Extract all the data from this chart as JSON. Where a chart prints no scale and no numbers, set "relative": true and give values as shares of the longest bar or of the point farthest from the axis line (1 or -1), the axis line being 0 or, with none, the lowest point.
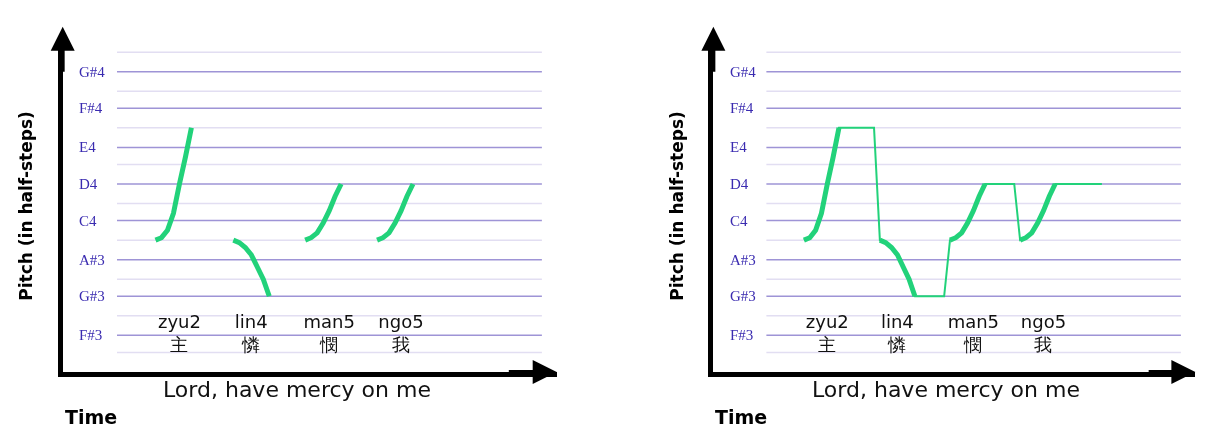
{
  "chart_data": [
    {
      "type": "line",
      "relative": true,
      "ylabel": "Pitch (in half-steps)",
      "xlabel": "Time",
      "annotations": [
        "Lord, have mercy on me"
      ],
      "marker": "none",
      "line_style": "solid",
      "categories": [
        null,
        null,
        null,
        null,
        null,
        null,
        null,
        null,
        null,
        null,
        null,
        null,
        null,
        null,
        null,
        null,
        null,
        null,
        null,
        "zyu2\n主",
        null,
        null,
        null,
        null,
        null,
        null,
        null,
        null,
        null,
        null,
        null,
        "lin4\n憐",
        null,
        null,
        null,
        null,
        null,
        null,
        null,
        null,
        null,
        null,
        null,
        null,
        "man5\n憫",
        null,
        null,
        null,
        null,
        null,
        null,
        null,
        null,
        null,
        null,
        null,
        "ngo5\n我",
        null,
        null,
        null,
        null,
        null,
        null,
        null,
        null,
        null,
        null,
        null,
        null,
        null,
        null,
        null,
        null,
        null,
        null,
        null,
        null,
        null,
        null,
        null,
        null,
        null
      ],
      "ref_lines": [
        {
          "axis": "y",
          "value": 1.31,
          "color": "#e2def2"
        },
        {
          "axis": "y",
          "value": 1.23,
          "label": "G#4",
          "color": "#9e94d6"
        },
        {
          "axis": "y",
          "value": 1.15,
          "color": "#e2def2"
        },
        {
          "axis": "y",
          "value": 1.08,
          "label": "F#4",
          "color": "#9e94d6"
        },
        {
          "axis": "y",
          "value": 1,
          "color": "#e2def2"
        },
        {
          "axis": "y",
          "value": 0.92,
          "label": "E4",
          "color": "#9e94d6"
        },
        {
          "axis": "y",
          "value": 0.85,
          "color": "#e2def2"
        },
        {
          "axis": "y",
          "value": 0.77,
          "label": "D4",
          "color": "#9e94d6"
        },
        {
          "axis": "y",
          "value": 0.69,
          "color": "#e2def2"
        },
        {
          "axis": "y",
          "value": 0.62,
          "label": "C4",
          "color": "#9e94d6"
        },
        {
          "axis": "y",
          "value": 0.54,
          "color": "#e2def2"
        },
        {
          "axis": "y",
          "value": 0.46,
          "label": "A#3",
          "color": "#9e94d6"
        },
        {
          "axis": "y",
          "value": 0.38,
          "color": "#e2def2"
        },
        {
          "axis": "y",
          "value": 0.31,
          "label": "G#3",
          "color": "#9e94d6"
        },
        {
          "axis": "y",
          "value": 0.23,
          "color": "#e2def2"
        },
        {
          "axis": "y",
          "value": 0.15,
          "label": "F#3",
          "color": "#9e94d6"
        },
        {
          "axis": "y",
          "value": 0.08,
          "color": "#e2def2"
        }
      ],
      "series": [
        {
          "color": "#22d27a",
          "values": [
            null,
            null,
            null,
            null,
            null,
            null,
            null,
            null,
            null,
            null,
            null,
            null,
            null,
            null,
            null,
            0.54,
            0.55,
            0.58,
            0.65,
            0.77,
            0.88,
            1,
            null,
            null,
            null,
            null,
            null,
            null,
            0.54,
            0.53,
            0.51,
            0.48,
            0.43,
            0.38,
            0.31,
            null,
            null,
            null,
            null,
            null,
            0.54,
            0.55,
            0.57,
            0.61,
            0.66,
            0.72,
            0.77,
            null,
            null,
            null,
            null,
            null,
            0.54,
            0.55,
            0.57,
            0.61,
            0.66,
            0.72,
            0.77,
            null,
            null,
            null,
            null,
            null,
            null,
            null,
            null,
            null,
            null,
            null,
            null,
            null,
            null,
            null,
            null,
            null,
            null,
            null,
            null,
            null,
            null,
            null
          ]
        }
      ]
    },
    {
      "type": "line",
      "relative": true,
      "ylabel": "Pitch (in half-steps)",
      "xlabel": "Time",
      "annotations": [
        "Lord, have mercy on me"
      ],
      "marker": "none",
      "line_style": "solid",
      "categories": [
        null,
        null,
        null,
        null,
        null,
        null,
        null,
        null,
        null,
        null,
        null,
        null,
        null,
        null,
        null,
        null,
        null,
        null,
        null,
        "zyu2\n主",
        null,
        null,
        null,
        null,
        null,
        null,
        null,
        null,
        null,
        null,
        null,
        "lin4\n憐",
        null,
        null,
        null,
        null,
        null,
        null,
        null,
        null,
        null,
        null,
        null,
        null,
        "man5\n憫",
        null,
        null,
        null,
        null,
        null,
        null,
        null,
        null,
        null,
        null,
        null,
        "ngo5\n我",
        null,
        null,
        null,
        null,
        null,
        null,
        null,
        null,
        null,
        null,
        null,
        null,
        null,
        null,
        null,
        null,
        null,
        null,
        null,
        null,
        null,
        null,
        null,
        null,
        null
      ],
      "ref_lines": [
        {
          "axis": "y",
          "value": 1.31,
          "color": "#e2def2"
        },
        {
          "axis": "y",
          "value": 1.23,
          "label": "G#4",
          "color": "#9e94d6"
        },
        {
          "axis": "y",
          "value": 1.15,
          "color": "#e2def2"
        },
        {
          "axis": "y",
          "value": 1.08,
          "label": "F#4",
          "color": "#9e94d6"
        },
        {
          "axis": "y",
          "value": 1,
          "color": "#e2def2"
        },
        {
          "axis": "y",
          "value": 0.92,
          "label": "E4",
          "color": "#9e94d6"
        },
        {
          "axis": "y",
          "value": 0.85,
          "color": "#e2def2"
        },
        {
          "axis": "y",
          "value": 0.77,
          "label": "D4",
          "color": "#9e94d6"
        },
        {
          "axis": "y",
          "value": 0.69,
          "color": "#e2def2"
        },
        {
          "axis": "y",
          "value": 0.62,
          "label": "C4",
          "color": "#9e94d6"
        },
        {
          "axis": "y",
          "value": 0.54,
          "color": "#e2def2"
        },
        {
          "axis": "y",
          "value": 0.46,
          "label": "A#3",
          "color": "#9e94d6"
        },
        {
          "axis": "y",
          "value": 0.38,
          "color": "#e2def2"
        },
        {
          "axis": "y",
          "value": 0.31,
          "label": "G#3",
          "color": "#9e94d6"
        },
        {
          "axis": "y",
          "value": 0.23,
          "color": "#e2def2"
        },
        {
          "axis": "y",
          "value": 0.15,
          "label": "F#3",
          "color": "#9e94d6"
        },
        {
          "axis": "y",
          "value": 0.08,
          "color": "#e2def2"
        }
      ],
      "series": [
        {
          "color": "#22d27a",
          "values": [
            null,
            null,
            null,
            null,
            null,
            null,
            null,
            null,
            null,
            null,
            null,
            null,
            null,
            null,
            null,
            0.54,
            0.55,
            0.58,
            0.65,
            0.77,
            0.88,
            1,
            1,
            1,
            1,
            1,
            1,
            1,
            0.54,
            0.53,
            0.51,
            0.48,
            0.43,
            0.38,
            0.31,
            0.31,
            0.31,
            0.31,
            0.31,
            0.31,
            0.54,
            0.55,
            0.57,
            0.61,
            0.66,
            0.72,
            0.77,
            0.77,
            0.77,
            0.77,
            0.77,
            0.77,
            0.54,
            0.55,
            0.57,
            0.61,
            0.66,
            0.72,
            0.77,
            0.77,
            0.77,
            0.77,
            0.77,
            0.77,
            0.77,
            0.77,
            0.77,
            null,
            null,
            null,
            null,
            null,
            null,
            null,
            null,
            null,
            null,
            null,
            null,
            null,
            null,
            null
          ]
        },
        {
          "color": "#22d27a",
          "values": [
            null,
            null,
            null,
            null,
            null,
            null,
            null,
            null,
            null,
            null,
            null,
            null,
            null,
            null,
            null,
            0.54,
            0.55,
            0.58,
            0.65,
            0.77,
            0.88,
            1,
            null,
            null,
            null,
            null,
            null,
            null,
            0.54,
            0.53,
            0.51,
            0.48,
            0.43,
            0.38,
            0.31,
            null,
            null,
            null,
            null,
            null,
            0.54,
            0.55,
            0.57,
            0.61,
            0.66,
            0.72,
            0.77,
            null,
            null,
            null,
            null,
            null,
            0.54,
            0.55,
            0.57,
            0.61,
            0.66,
            0.72,
            0.77,
            null,
            null,
            null,
            null,
            null,
            null,
            null,
            null,
            null,
            null,
            null,
            null,
            null,
            null,
            null,
            null,
            null,
            null,
            null,
            null,
            null,
            null,
            null
          ]
        }
      ]
    }
  ]
}
